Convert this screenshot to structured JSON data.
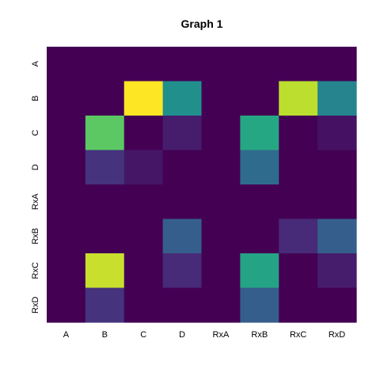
{
  "chart_data": {
    "type": "heatmap",
    "title": "Graph 1",
    "xlabel": "",
    "ylabel": "",
    "x_categories": [
      "A",
      "B",
      "C",
      "D",
      "RxA",
      "RxB",
      "RxC",
      "RxD"
    ],
    "y_categories": [
      "A",
      "B",
      "C",
      "D",
      "RxA",
      "RxB",
      "RxC",
      "RxD"
    ],
    "values": [
      [
        0,
        0,
        0,
        0,
        0,
        0,
        0,
        0
      ],
      [
        0,
        0,
        1.0,
        0.5,
        0,
        0,
        0.9,
        0.45
      ],
      [
        0,
        0.75,
        0,
        0.08,
        0,
        0.6,
        0,
        0.05
      ],
      [
        0,
        0.15,
        0.06,
        0,
        0,
        0.35,
        0,
        0
      ],
      [
        0,
        0,
        0,
        0,
        0,
        0,
        0,
        0
      ],
      [
        0,
        0,
        0,
        0.3,
        0,
        0,
        0.12,
        0.3
      ],
      [
        0,
        0.92,
        0,
        0.12,
        0,
        0.58,
        0,
        0.08
      ],
      [
        0,
        0.15,
        0,
        0,
        0,
        0.3,
        0,
        0
      ]
    ],
    "colormap": "viridis",
    "colors": {
      "low": "#440154",
      "high": "#fde725"
    },
    "legend": "none",
    "grid": false
  }
}
